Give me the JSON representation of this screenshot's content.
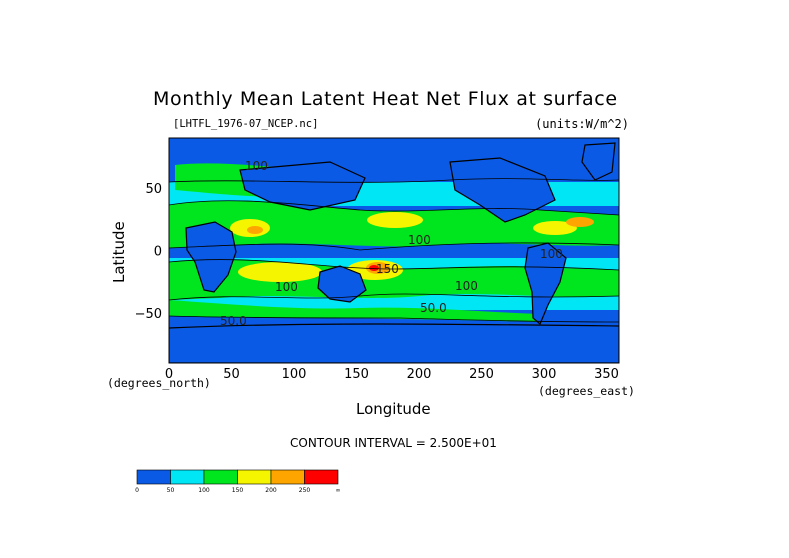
{
  "chart_data": {
    "type": "heatmap",
    "title": "Monthly Mean Latent Heat Net Flux at surface",
    "dataset": "[LHTFL_1976-07_NCEP.nc]",
    "units_label": "(units:W/m^2)",
    "xlabel": "Longitude",
    "ylabel": "Latitude",
    "x_units": "(degrees_east)",
    "y_units": "(degrees_north)",
    "xlim": [
      0,
      360
    ],
    "ylim": [
      -90,
      90
    ],
    "x_ticks": [
      "0",
      "50",
      "100",
      "150",
      "200",
      "250",
      "300",
      "350"
    ],
    "y_ticks": [
      "50",
      "0",
      "−50"
    ],
    "contour_interval": "CONTOUR INTERVAL = 2.500E+01",
    "contour_labels": [
      "100",
      "150",
      "100",
      "100",
      "50.0",
      "100",
      "50.0",
      "100"
    ],
    "colorbar": {
      "levels": [
        "0",
        "50",
        "100",
        "150",
        "200",
        "250",
        "∞"
      ],
      "colors": [
        "#0a5ae6",
        "#00e6f5",
        "#00e61e",
        "#f5f500",
        "#ffa500",
        "#ff0000"
      ]
    }
  }
}
